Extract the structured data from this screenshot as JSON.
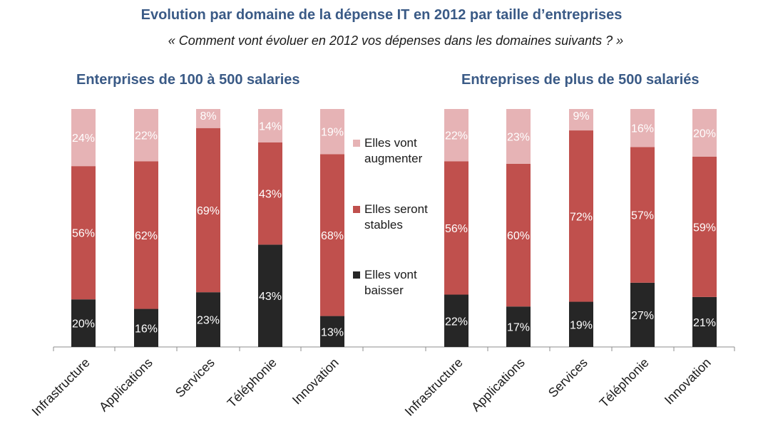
{
  "title": "Evolution par domaine de la dépense IT en 2012 par taille d’entreprises",
  "subtitle": "« Comment vont évoluer en 2012 vos dépenses dans les domaines suivants ? »",
  "colors": {
    "up": "#e6b3b5",
    "stable": "#c0504d",
    "down": "#262626"
  },
  "legend": [
    {
      "key": "up",
      "lines": [
        "Elles vont",
        "augmenter"
      ]
    },
    {
      "key": "stable",
      "lines": [
        "Elles seront",
        "stables"
      ]
    },
    {
      "key": "down",
      "lines": [
        "Elles vont",
        "baisser"
      ]
    }
  ],
  "chart_data": [
    {
      "type": "bar",
      "stacked": true,
      "title": "Enterprises de 100 à 500 salaries",
      "categories": [
        "Infrastructure",
        "Applications",
        "Services",
        "Téléphonie",
        "Innovation"
      ],
      "series": [
        {
          "key": "down",
          "name": "Elles vont baisser",
          "values": [
            20,
            16,
            23,
            43,
            13
          ]
        },
        {
          "key": "stable",
          "name": "Elles seront stables",
          "values": [
            56,
            62,
            69,
            43,
            68
          ]
        },
        {
          "key": "up",
          "name": "Elles vont augmenter",
          "values": [
            24,
            22,
            8,
            14,
            19
          ]
        }
      ],
      "labels": [
        [
          "20%",
          "16%",
          "23%",
          "43%",
          "13%"
        ],
        [
          "56%",
          "62%",
          "69%",
          "43%",
          "68%"
        ],
        [
          "24%",
          "22%",
          "8%",
          "14%",
          "19%"
        ]
      ],
      "ylim": [
        0,
        100
      ]
    },
    {
      "type": "bar",
      "stacked": true,
      "title": "Entreprises de plus de 500 salariés",
      "categories": [
        "Infrastructure",
        "Applications",
        "Services",
        "Téléphonie",
        "Innovation"
      ],
      "series": [
        {
          "key": "down",
          "name": "Elles vont baisser",
          "values": [
            22,
            17,
            19,
            27,
            21
          ]
        },
        {
          "key": "stable",
          "name": "Elles seront stables",
          "values": [
            56,
            60,
            72,
            57,
            59
          ]
        },
        {
          "key": "up",
          "name": "Elles vont augmenter",
          "values": [
            22,
            23,
            9,
            16,
            20
          ]
        }
      ],
      "labels": [
        [
          "22%",
          "17%",
          "19%",
          "27%",
          "21%"
        ],
        [
          "56%",
          "60%",
          "72%",
          "57%",
          "59%"
        ],
        [
          "22%",
          "23%",
          "9%",
          "16%",
          "20%"
        ]
      ],
      "ylim": [
        0,
        100
      ]
    }
  ]
}
